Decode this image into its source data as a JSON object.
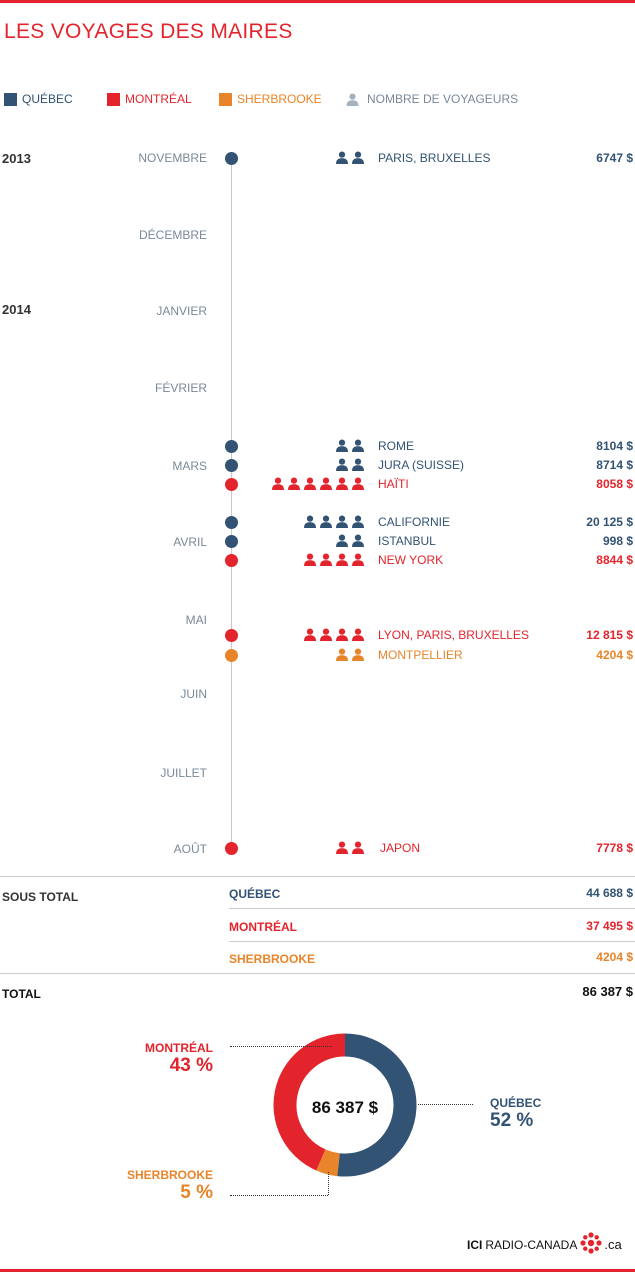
{
  "title": "LES VOYAGES DES MAIRES",
  "colors": {
    "quebec": "#325373",
    "montreal": "#e4242c",
    "sherbrooke": "#e8842a",
    "people_legend": "#a6b3bf",
    "month_text": "#7a8a99"
  },
  "legend": [
    {
      "label": "QUÉBEC",
      "color": "#325373",
      "kind": "square"
    },
    {
      "label": "MONTRÉAL",
      "color": "#e4242c",
      "kind": "square"
    },
    {
      "label": "SHERBROOKE",
      "color": "#e8842a",
      "kind": "square"
    },
    {
      "label": "NOMBRE DE VOYAGEURS",
      "color": "#a6b3bf",
      "kind": "person-icon"
    }
  ],
  "years": [
    "2013",
    "2014"
  ],
  "months": [
    "NOVEMBRE",
    "DÉCEMBRE",
    "JANVIER",
    "FÉVRIER",
    "MARS",
    "AVRIL",
    "MAI",
    "JUIN",
    "JUILLET",
    "AOÛT"
  ],
  "trips": [
    {
      "month": "NOVEMBRE",
      "city": "QUÉBEC",
      "destination": "PARIS, BRUXELLES",
      "travelers": 2,
      "cost": "6747 $"
    },
    {
      "month": "MARS",
      "city": "QUÉBEC",
      "destination": "ROME",
      "travelers": 2,
      "cost": "8104 $"
    },
    {
      "month": "MARS",
      "city": "QUÉBEC",
      "destination": "JURA (SUISSE)",
      "travelers": 2,
      "cost": "8714 $"
    },
    {
      "month": "MARS",
      "city": "MONTRÉAL",
      "destination": "HAÏTI",
      "travelers": 6,
      "cost": "8058 $"
    },
    {
      "month": "AVRIL",
      "city": "QUÉBEC",
      "destination": "CALIFORNIE",
      "travelers": 4,
      "cost": "20 125 $"
    },
    {
      "month": "AVRIL",
      "city": "QUÉBEC",
      "destination": "ISTANBUL",
      "travelers": 2,
      "cost": "998 $"
    },
    {
      "month": "AVRIL",
      "city": "MONTRÉAL",
      "destination": "NEW YORK",
      "travelers": 4,
      "cost": "8844 $"
    },
    {
      "month": "MAI",
      "city": "MONTRÉAL",
      "destination": "LYON, PARIS, BRUXELLES",
      "travelers": 4,
      "cost": "12 815 $"
    },
    {
      "month": "MAI",
      "city": "SHERBROOKE",
      "destination": "MONTPELLIER",
      "travelers": 2,
      "cost": "4204 $"
    },
    {
      "month": "AOÛT",
      "city": "MONTRÉAL",
      "destination": "JAPON",
      "travelers": 2,
      "cost": "7778 $"
    }
  ],
  "subtotal": {
    "label": "SOUS TOTAL",
    "rows": [
      {
        "city": "QUÉBEC",
        "value": "44 688 $"
      },
      {
        "city": "MONTRÉAL",
        "value": "37 495 $"
      },
      {
        "city": "SHERBROOKE",
        "value": "4204 $"
      }
    ]
  },
  "total": {
    "label": "TOTAL",
    "value": "86 387 $"
  },
  "chart_data": {
    "type": "pie",
    "center_label": "86 387 $",
    "slices": [
      {
        "label": "QUÉBEC",
        "percent_label": "52 %",
        "value": 44688,
        "color": "#325373"
      },
      {
        "label": "SHERBROOKE",
        "percent_label": "5 %",
        "value": 4204,
        "color": "#e8842a"
      },
      {
        "label": "MONTRÉAL",
        "percent_label": "43 %",
        "value": 37495,
        "color": "#e4242c"
      }
    ]
  },
  "logo": {
    "text_bold": "ICI",
    "text": "RADIO-CANADA",
    "suffix": ".ca"
  }
}
